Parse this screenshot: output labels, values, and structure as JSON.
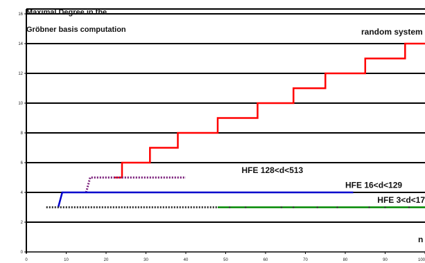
{
  "chart_data": {
    "type": "line",
    "title_lines": [
      "Maximal Degree in the",
      "Gröbner basis computation"
    ],
    "xlabel": "n",
    "ylabel": "",
    "xlim": [
      0,
      100
    ],
    "ylim": [
      0,
      16
    ],
    "x_ticks": [
      0,
      10,
      20,
      30,
      40,
      50,
      60,
      70,
      80,
      90,
      100
    ],
    "y_ticks": [
      0,
      2,
      4,
      6,
      8,
      10,
      12,
      14,
      16
    ],
    "grid": "horizontal",
    "series": [
      {
        "name": "random system",
        "color": "#ff0000",
        "style": "solid-step",
        "points": [
          [
            22,
            5
          ],
          [
            24,
            5
          ],
          [
            24,
            6
          ],
          [
            31,
            6
          ],
          [
            31,
            7
          ],
          [
            38,
            7
          ],
          [
            38,
            8
          ],
          [
            48,
            8
          ],
          [
            48,
            9
          ],
          [
            58,
            9
          ],
          [
            58,
            10
          ],
          [
            67,
            10
          ],
          [
            67,
            11
          ],
          [
            75,
            11
          ],
          [
            75,
            12
          ],
          [
            85,
            12
          ],
          [
            85,
            13
          ],
          [
            95,
            13
          ],
          [
            95,
            14
          ],
          [
            100,
            14
          ]
        ]
      },
      {
        "name": "HFE 128<d<513",
        "color": "#7a1e7a",
        "style": "dotted",
        "points": [
          [
            15,
            4
          ],
          [
            16,
            5
          ],
          [
            40,
            5
          ]
        ]
      },
      {
        "name": "HFE 16<d<129",
        "color": "#0000cc",
        "style": "solid",
        "points": [
          [
            8,
            3
          ],
          [
            9,
            4
          ],
          [
            82,
            4
          ]
        ]
      },
      {
        "name": "HFE 3<d<17",
        "color": "#008800",
        "style": "dotted-then-solid",
        "points": [
          [
            5,
            3
          ],
          [
            100,
            3
          ]
        ]
      }
    ],
    "annotations": [
      {
        "text": "random system",
        "x": 84,
        "y": 14.6
      },
      {
        "text": "HFE 128<d<513",
        "x": 54,
        "y": 5.3
      },
      {
        "text": "HFE 16<d<129",
        "x": 80,
        "y": 4.3
      },
      {
        "text": "HFE 3<d<17",
        "x": 100,
        "y": 3.3
      }
    ]
  }
}
